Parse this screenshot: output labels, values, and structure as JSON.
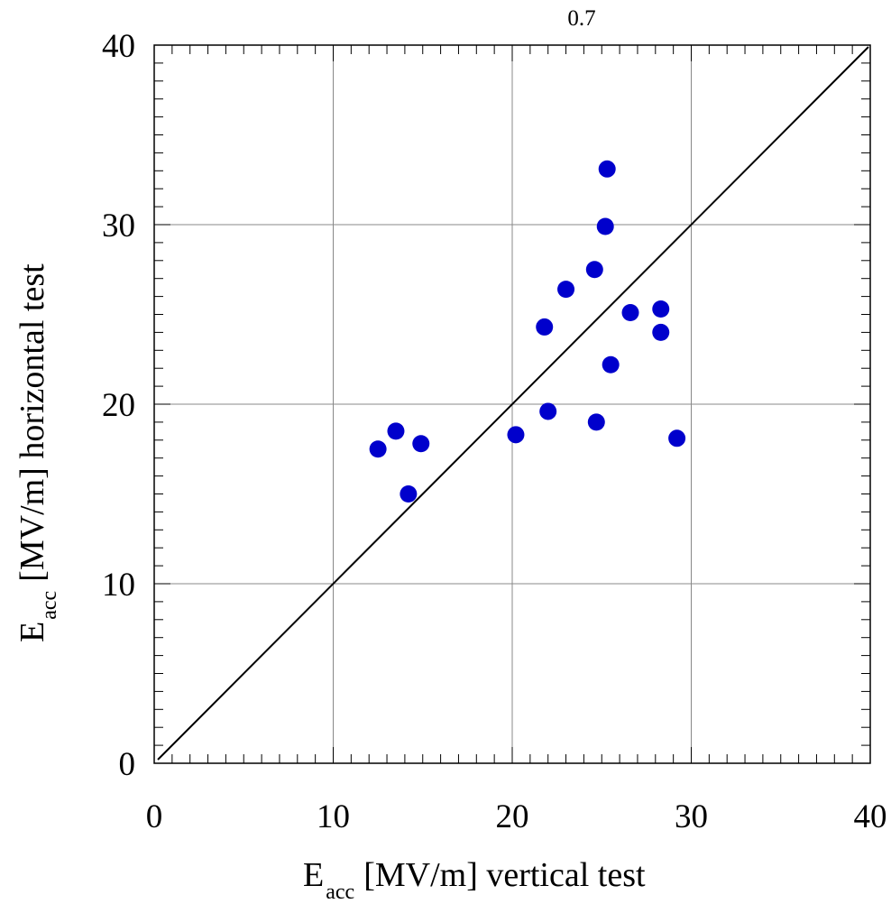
{
  "chart_data": {
    "type": "scatter",
    "title": "0.7",
    "xlabel": {
      "main": "E",
      "sub": "acc",
      "rest": "[MV/m] vertical test"
    },
    "ylabel": {
      "main": "E",
      "sub": "acc",
      "rest": "[MV/m] horizontal test"
    },
    "xlim": [
      0,
      40
    ],
    "ylim": [
      0,
      40
    ],
    "xticks": [
      "0",
      "10",
      "20",
      "30",
      "40"
    ],
    "yticks": [
      "0",
      "10",
      "20",
      "30",
      "40"
    ],
    "grid": true,
    "reference_line": {
      "from": [
        0,
        0
      ],
      "to": [
        40,
        40
      ]
    },
    "marker_color": "#0000cc",
    "points": [
      {
        "x": 12.5,
        "y": 17.5
      },
      {
        "x": 13.5,
        "y": 18.5
      },
      {
        "x": 14.2,
        "y": 15.0
      },
      {
        "x": 14.9,
        "y": 17.8
      },
      {
        "x": 20.2,
        "y": 18.3
      },
      {
        "x": 21.8,
        "y": 24.3
      },
      {
        "x": 22.0,
        "y": 19.6
      },
      {
        "x": 23.0,
        "y": 26.4
      },
      {
        "x": 24.6,
        "y": 27.5
      },
      {
        "x": 24.7,
        "y": 19.0
      },
      {
        "x": 25.2,
        "y": 29.9
      },
      {
        "x": 25.3,
        "y": 33.1
      },
      {
        "x": 25.5,
        "y": 22.2
      },
      {
        "x": 26.6,
        "y": 25.1
      },
      {
        "x": 28.3,
        "y": 25.3
      },
      {
        "x": 28.3,
        "y": 24.0
      },
      {
        "x": 29.2,
        "y": 18.1
      }
    ]
  }
}
